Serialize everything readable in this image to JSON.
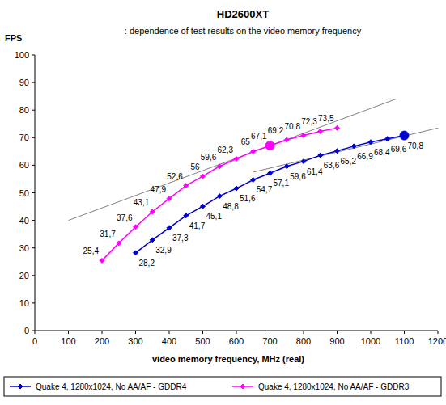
{
  "chart_data": {
    "type": "line",
    "title": "HD2600XT",
    "subtitle": ": dependence of test results on the video memory frequency",
    "x_label": "video memory frequency, MHz (real)",
    "y_label": "FPS",
    "xlim": [
      0,
      1200
    ],
    "xticks": [
      0,
      100,
      200,
      300,
      400,
      500,
      600,
      700,
      800,
      900,
      1000,
      1100,
      1200
    ],
    "ylim": [
      0,
      100
    ],
    "yticks": [
      0,
      10,
      20,
      30,
      40,
      50,
      60,
      70,
      80,
      90,
      100
    ],
    "grid": false,
    "legend": "bottom",
    "data_labels": true,
    "series": [
      {
        "name": "Quake 4, 1280x1024, No AA/AF - GDDR4",
        "color": "#0000cc",
        "marker": "diamond",
        "line_style": "solid",
        "x": [
          300,
          350,
          400,
          450,
          500,
          550,
          600,
          650,
          700,
          750,
          800,
          850,
          900,
          950,
          1000,
          1050,
          1100
        ],
        "values": [
          28.2,
          32.9,
          37.3,
          41.7,
          45.1,
          48.8,
          51.6,
          54.7,
          57.1,
          59.6,
          61.4,
          63.6,
          65.2,
          66.9,
          68.4,
          69.6,
          70.8
        ],
        "value_labels": [
          "28,2",
          "32,9",
          "37,3",
          "41,7",
          "45,1",
          "48,8",
          "51,6",
          "54,7",
          "57,1",
          "59,6",
          "61,4",
          "63,6",
          "65,2",
          "66,9",
          "68,4",
          "69,6",
          "70,8"
        ]
      },
      {
        "name": "Quake 4, 1280x1024, No AA/AF - GDDR3",
        "color": "#ff00ff",
        "marker": "diamond",
        "line_style": "solid",
        "x": [
          200,
          250,
          300,
          350,
          400,
          450,
          500,
          550,
          600,
          650,
          700,
          750,
          800,
          850,
          900
        ],
        "values": [
          25.4,
          31.7,
          37.6,
          43.1,
          47.9,
          52.6,
          56,
          59.6,
          62.3,
          65,
          67.1,
          69.2,
          70.8,
          72.3,
          73.5
        ],
        "value_labels": [
          "25,4",
          "31,7",
          "37,6",
          "43,1",
          "47,9",
          "52,6",
          "56",
          "59,6",
          "62,3",
          "65",
          "67,1",
          "69,2",
          "70,8",
          "72,3",
          "73,5"
        ]
      }
    ],
    "trend_lines": [
      {
        "x": [
          100,
          1075
        ],
        "y": [
          40,
          84
        ]
      },
      {
        "x": [
          650,
          1200
        ],
        "y": [
          57.5,
          73.5
        ]
      }
    ],
    "highlight_points": [
      {
        "x": 1100,
        "y": 70.8,
        "color": "#0000cc"
      },
      {
        "x": 700,
        "y": 67.1,
        "color": "#ff00ff"
      }
    ]
  }
}
